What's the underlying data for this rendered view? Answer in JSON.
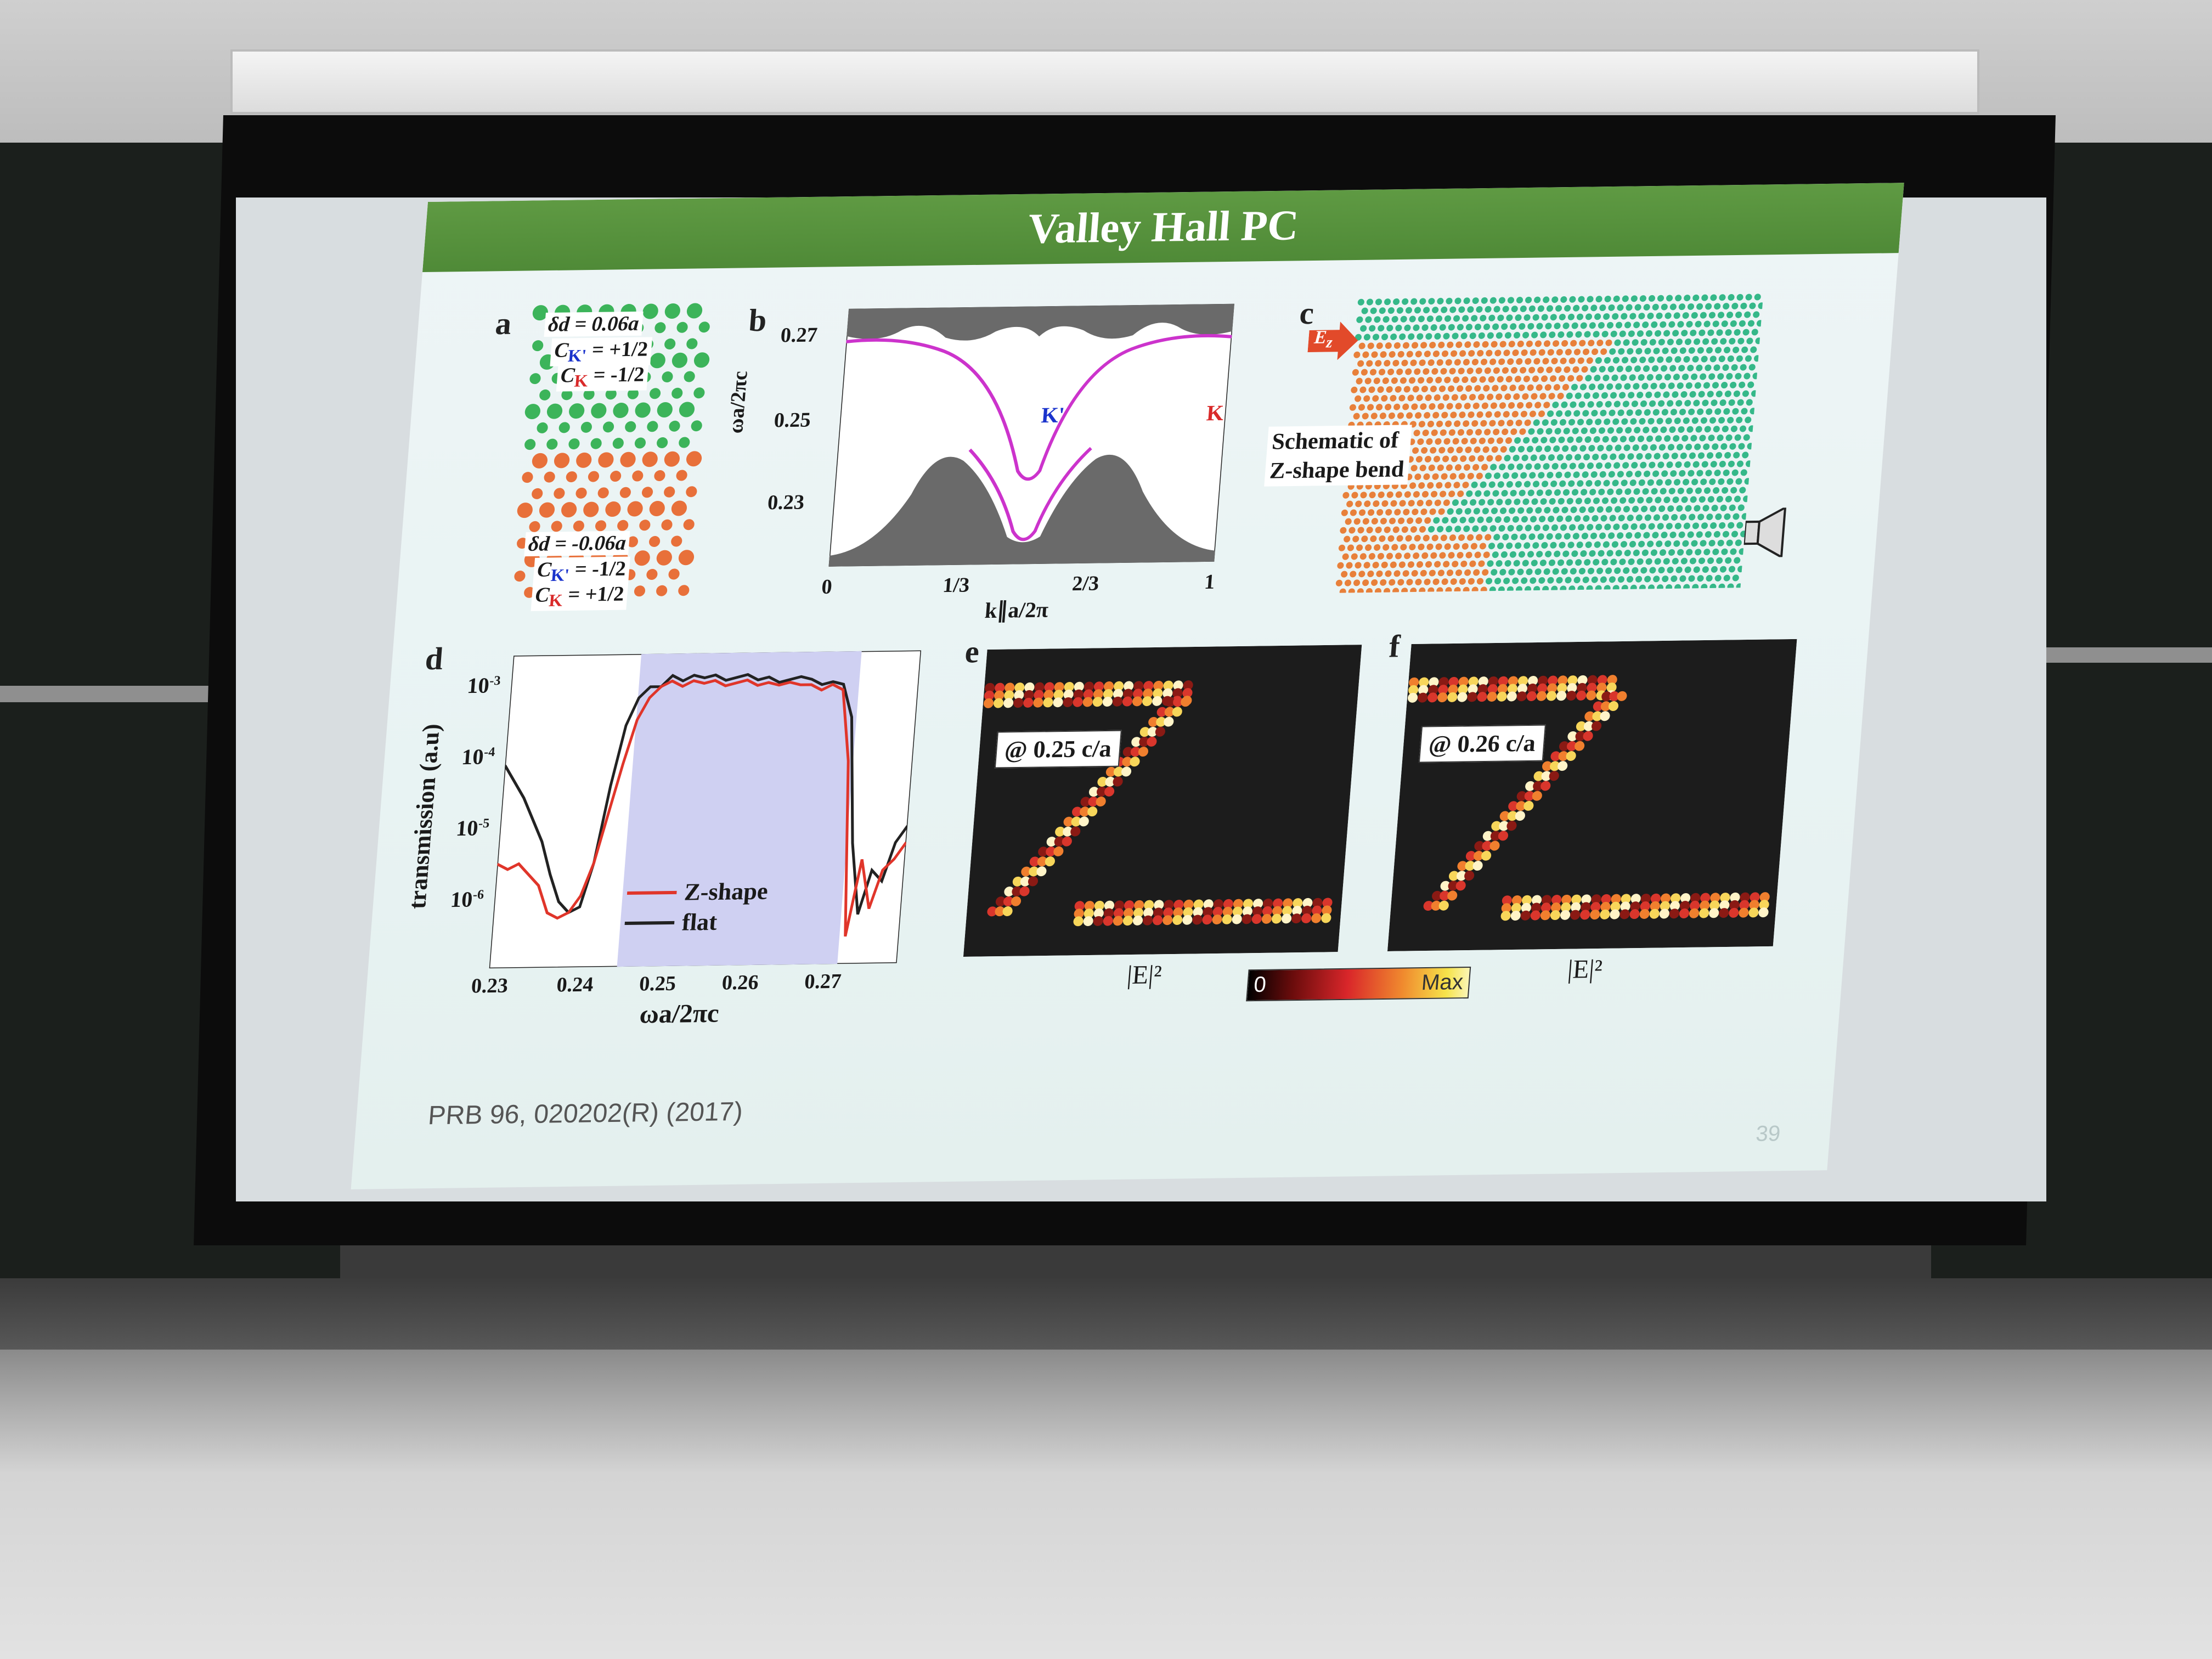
{
  "slide": {
    "title": "Valley Hall PC",
    "citation": "PRB 96, 020202(R) (2017)",
    "page_number": "39"
  },
  "panel_a": {
    "label": "a",
    "top": {
      "delta": "δd = 0.06a",
      "c1": "C",
      "c1_sub": "K'",
      "c1_val": " = +1/2",
      "c2": "C",
      "c2_sub": "K",
      "c2_val": " = -1/2"
    },
    "bottom": {
      "delta": "δd = -0.06a",
      "c1": "C",
      "c1_sub": "K'",
      "c1_val": " = -1/2",
      "c2": "C",
      "c2_sub": "K",
      "c2_val": " = +1/2"
    },
    "colors": {
      "top": "#3cb45a",
      "bottom": "#e8703a"
    }
  },
  "panel_b": {
    "label": "b",
    "ylabel": "ωa/2πc",
    "xlabel": "k∥a/2π",
    "yticks": [
      "0.27",
      "0.25",
      "0.23"
    ],
    "xticks": [
      "0",
      "1/3",
      "2/3",
      "1"
    ],
    "kprime_label": "K'",
    "k_label": "K",
    "colors": {
      "bulk": "#6a6a6a",
      "edge": "#cc33cc"
    }
  },
  "panel_c": {
    "label": "c",
    "source_label": "E",
    "source_sub": "z",
    "caption_line1": "Schematic of",
    "caption_line2": "Z-shape bend",
    "colors": {
      "top": "#35b889",
      "bottom": "#e8803a",
      "arrow": "#e24a2a"
    }
  },
  "panel_d": {
    "label": "d",
    "ylabel": "transmission (a.u)",
    "xlabel": "ωa/2πc",
    "yticks": [
      {
        "base": "10",
        "exp": "-3"
      },
      {
        "base": "10",
        "exp": "-4"
      },
      {
        "base": "10",
        "exp": "-5"
      },
      {
        "base": "10",
        "exp": "-6"
      }
    ],
    "xticks": [
      "0.23",
      "0.24",
      "0.25",
      "0.26",
      "0.27"
    ],
    "legend": [
      {
        "name": "Z-shape",
        "color": "#e0352a"
      },
      {
        "name": "flat",
        "color": "#222222"
      }
    ],
    "band_color": "#c8c8f0"
  },
  "panel_e": {
    "label": "e",
    "annotation": "@ 0.25 c/a",
    "axis": "|E|²"
  },
  "panel_f": {
    "label": "f",
    "annotation": "@ 0.26 c/a",
    "axis": "|E|²"
  },
  "colorbar": {
    "min": "0",
    "max": "Max"
  }
}
